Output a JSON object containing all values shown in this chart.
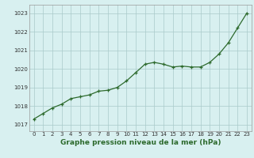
{
  "x": [
    0,
    1,
    2,
    3,
    4,
    5,
    6,
    7,
    8,
    9,
    10,
    11,
    12,
    13,
    14,
    15,
    16,
    17,
    18,
    19,
    20,
    21,
    22,
    23
  ],
  "y": [
    1017.3,
    1017.6,
    1017.9,
    1018.1,
    1018.4,
    1018.5,
    1018.6,
    1018.8,
    1018.85,
    1019.0,
    1019.35,
    1019.8,
    1020.25,
    1020.35,
    1020.25,
    1020.1,
    1020.15,
    1020.1,
    1020.1,
    1020.35,
    1020.8,
    1021.4,
    1022.2,
    1023.0
  ],
  "line_color": "#2d6a2d",
  "marker_color": "#2d6a2d",
  "bg_color": "#d8f0f0",
  "grid_color": "#aacaca",
  "xlabel": "Graphe pression niveau de la mer (hPa)",
  "xlabel_fontsize": 6.5,
  "xlabel_color": "#2d6a2d",
  "ytick_labels": [
    "1017",
    "1018",
    "1019",
    "1020",
    "1021",
    "1022",
    "1023"
  ],
  "yticks": [
    1017,
    1018,
    1019,
    1020,
    1021,
    1022,
    1023
  ],
  "ylim": [
    1016.65,
    1023.45
  ],
  "xlim": [
    -0.5,
    23.5
  ],
  "xtick_labels": [
    "0",
    "1",
    "2",
    "3",
    "4",
    "5",
    "6",
    "7",
    "8",
    "9",
    "10",
    "11",
    "12",
    "13",
    "14",
    "15",
    "16",
    "17",
    "18",
    "19",
    "20",
    "21",
    "22",
    "23"
  ],
  "tick_fontsize": 5.0,
  "marker_size": 3.0,
  "line_width": 0.9
}
